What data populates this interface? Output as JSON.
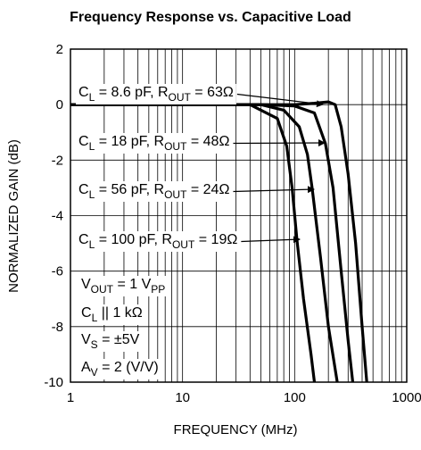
{
  "chart_data": {
    "type": "line",
    "title": "Frequency Response vs. Capacitive Load",
    "xlabel": "FREQUENCY (MHz)",
    "ylabel": "NORMALIZED GAIN (dB)",
    "xscale": "log",
    "xlim": [
      1,
      1000
    ],
    "xticks": [
      1,
      10,
      100,
      1000
    ],
    "ylim": [
      -10,
      2
    ],
    "yticks": [
      2,
      0,
      -2,
      -4,
      -6,
      -8,
      -10
    ],
    "grid": true,
    "series": [
      {
        "name": [
          "C",
          "L",
          " = 8.6 pF, R",
          "OUT",
          " = 63Ω"
        ],
        "color": "#000000",
        "x": [
          1,
          10,
          50,
          100,
          150,
          200,
          230,
          260,
          300,
          350,
          400,
          440
        ],
        "values": [
          0,
          0,
          0,
          0,
          0.05,
          0.1,
          0,
          -0.8,
          -2.5,
          -5,
          -8,
          -10
        ]
      },
      {
        "name": [
          "C",
          "L",
          " = 18 pF, R",
          "OUT",
          " = 48Ω"
        ],
        "color": "#000000",
        "x": [
          1,
          10,
          50,
          100,
          150,
          188,
          220,
          260,
          300,
          330
        ],
        "values": [
          0,
          0,
          0,
          -0.05,
          -0.3,
          -1.4,
          -3,
          -6,
          -8.5,
          -10
        ]
      },
      {
        "name": [
          "C",
          "L",
          " = 56 pF, R",
          "OUT",
          " = 24Ω"
        ],
        "color": "#000000",
        "x": [
          1,
          10,
          50,
          80,
          110,
          130,
          143,
          170,
          200,
          240
        ],
        "values": [
          0,
          0,
          0,
          -0.2,
          -0.8,
          -1.8,
          -3,
          -5.5,
          -8,
          -10
        ]
      },
      {
        "name": [
          "C",
          "L",
          " = 100 pF, R",
          "OUT",
          " = 19Ω"
        ],
        "color": "#000000",
        "x": [
          1,
          10,
          40,
          70,
          85,
          95,
          105,
          120,
          140,
          150
        ],
        "values": [
          0,
          0,
          0,
          -0.5,
          -1.5,
          -3,
          -4.9,
          -7,
          -9,
          -10
        ]
      }
    ],
    "conditions": [
      [
        "V",
        "OUT",
        " = 1 V",
        "PP"
      ],
      [
        "C",
        "L",
        " || 1 kΩ"
      ],
      [
        "V",
        "S",
        " = ±5V"
      ],
      [
        "A",
        "V",
        " = 2 (V/V)"
      ]
    ]
  }
}
